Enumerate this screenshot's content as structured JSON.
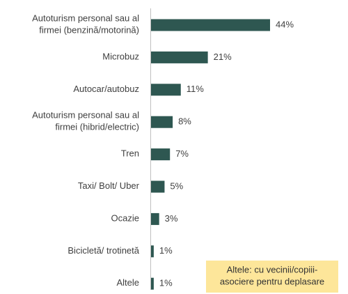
{
  "chart_data": {
    "type": "bar",
    "orientation": "horizontal",
    "categories": [
      "Autoturism personal sau al\nfirmei (benzină/motorină)",
      "Microbuz",
      "Autocar/autobuz",
      "Autoturism personal sau al\nfirmei (hibrid/electric)",
      "Tren",
      "Taxi/ Bolt/ Uber",
      "Ocazie",
      "Bicicletă/ trotinetă",
      "Altele"
    ],
    "values": [
      44,
      21,
      11,
      8,
      7,
      5,
      3,
      1,
      1
    ],
    "value_labels": [
      "44%",
      "21%",
      "11%",
      "8%",
      "7%",
      "5%",
      "3%",
      "1%",
      "1%"
    ],
    "color": "#2e5751",
    "annotation": "Altele: cu vecinii/copiii-\nasociere pentru deplasare"
  }
}
